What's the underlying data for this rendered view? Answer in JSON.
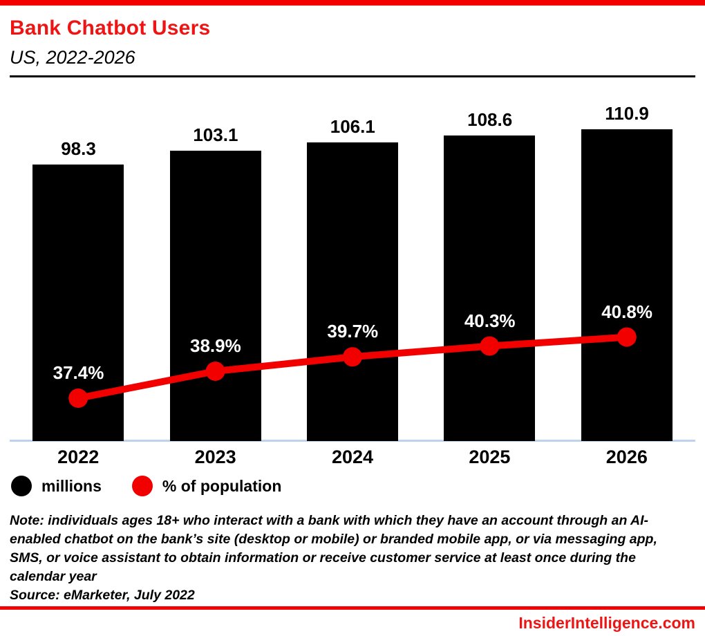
{
  "header": {
    "title": "Bank Chatbot Users",
    "subtitle": "US, 2022-2026"
  },
  "chart_data": {
    "type": "bar",
    "title": "Bank Chatbot Users",
    "subtitle": "US, 2022-2026",
    "categories": [
      "2022",
      "2023",
      "2024",
      "2025",
      "2026"
    ],
    "series": [
      {
        "name": "millions",
        "type": "bar",
        "color": "#000000",
        "values": [
          98.3,
          103.1,
          106.1,
          108.6,
          110.9
        ]
      },
      {
        "name": "% of population",
        "type": "line",
        "color": "#f20000",
        "values": [
          37.4,
          38.9,
          39.7,
          40.3,
          40.8
        ]
      }
    ],
    "value_labels_bar": [
      "98.3",
      "103.1",
      "106.1",
      "108.6",
      "110.9"
    ],
    "value_labels_line": [
      "37.4%",
      "38.9%",
      "39.7%",
      "40.3%",
      "40.8%"
    ],
    "legend_position": "bottom-left",
    "grid": false
  },
  "legend": {
    "items": [
      {
        "label": "millions",
        "color": "#000000"
      },
      {
        "label": "% of population",
        "color": "#f20000"
      }
    ]
  },
  "footer": {
    "note": "Note: individuals ages 18+ who interact with a bank with which they have an account through an AI-enabled chatbot on the bank’s site (desktop or mobile) or branded mobile app, or via messaging app, SMS, or voice assistant to obtain information or receive customer service at least once during the calendar year",
    "source": "Source: eMarketer, July 2022",
    "brand": "InsiderIntelligence.com"
  },
  "colors": {
    "accent_red": "#ee1414",
    "line_red": "#f20000",
    "bar_black": "#000000",
    "baseline_blue": "#bdd2ec"
  }
}
